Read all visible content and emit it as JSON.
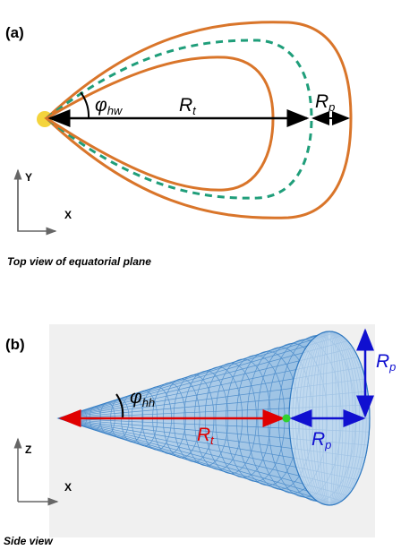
{
  "panel_a": {
    "label": "(a)",
    "angle": {
      "symbol": "φ",
      "sub": "hw"
    },
    "rt": {
      "symbol": "R",
      "sub": "t"
    },
    "rp": {
      "symbol": "R",
      "sub": "p"
    },
    "axis_y": "Y",
    "axis_x": "X",
    "caption": "Top view of equatorial plane"
  },
  "panel_b": {
    "label": "(b)",
    "angle": {
      "symbol": "φ",
      "sub": "hh"
    },
    "rt": {
      "symbol": "R",
      "sub": "t"
    },
    "rp": {
      "symbol": "R",
      "sub": "p"
    },
    "rp_vertical": {
      "symbol": "R",
      "sub": "p"
    },
    "axis_z": "Z",
    "axis_x": "X",
    "caption": "Side view"
  }
}
